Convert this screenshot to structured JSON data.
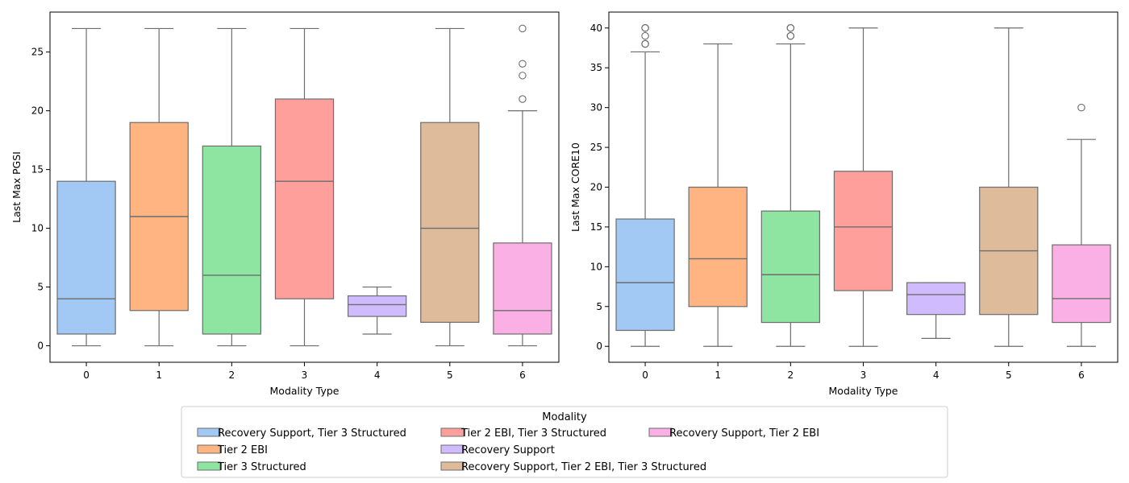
{
  "chart_data": [
    {
      "type": "box",
      "xlabel": "Modality Type",
      "ylabel": "Last Max PGSI",
      "ylim": [
        -1.4,
        28.4
      ],
      "yticks": [
        0,
        5,
        10,
        15,
        20,
        25
      ],
      "categories": [
        "0",
        "1",
        "2",
        "3",
        "4",
        "5",
        "6"
      ],
      "boxes": [
        {
          "category": "0",
          "series": "Recovery Support, Tier 3 Structured",
          "whislo": 0,
          "q1": 1,
          "median": 4,
          "q3": 14,
          "whishi": 27,
          "fliers": []
        },
        {
          "category": "1",
          "series": "Tier 2 EBI",
          "whislo": 0,
          "q1": 3,
          "median": 11,
          "q3": 19,
          "whishi": 27,
          "fliers": []
        },
        {
          "category": "2",
          "series": "Tier 3 Structured",
          "whislo": 0,
          "q1": 1,
          "median": 6,
          "q3": 17,
          "whishi": 27,
          "fliers": []
        },
        {
          "category": "3",
          "series": "Tier 2 EBI, Tier 3 Structured",
          "whislo": 0,
          "q1": 4,
          "median": 14,
          "q3": 21,
          "whishi": 27,
          "fliers": []
        },
        {
          "category": "4",
          "series": "Recovery Support",
          "whislo": 1,
          "q1": 2.5,
          "median": 3.5,
          "q3": 4.25,
          "whishi": 5,
          "fliers": []
        },
        {
          "category": "5",
          "series": "Recovery Support, Tier 2 EBI, Tier 3 Structured",
          "whislo": 0,
          "q1": 2,
          "median": 10,
          "q3": 19,
          "whishi": 27,
          "fliers": []
        },
        {
          "category": "6",
          "series": "Recovery Support, Tier 2 EBI",
          "whislo": 0,
          "q1": 1,
          "median": 3,
          "q3": 8.75,
          "whishi": 20,
          "fliers": [
            21,
            23,
            24,
            27
          ]
        }
      ]
    },
    {
      "type": "box",
      "xlabel": "Modality Type",
      "ylabel": "Last Max CORE10",
      "ylim": [
        -2,
        42
      ],
      "yticks": [
        0,
        5,
        10,
        15,
        20,
        25,
        30,
        35,
        40
      ],
      "categories": [
        "0",
        "1",
        "2",
        "3",
        "4",
        "5",
        "6"
      ],
      "boxes": [
        {
          "category": "0",
          "series": "Recovery Support, Tier 3 Structured",
          "whislo": 0,
          "q1": 2,
          "median": 8,
          "q3": 16,
          "whishi": 37,
          "fliers": [
            38,
            38,
            39,
            40,
            40
          ]
        },
        {
          "category": "1",
          "series": "Tier 2 EBI",
          "whislo": 0,
          "q1": 5,
          "median": 11,
          "q3": 20,
          "whishi": 38,
          "fliers": []
        },
        {
          "category": "2",
          "series": "Tier 3 Structured",
          "whislo": 0,
          "q1": 3,
          "median": 9,
          "q3": 17,
          "whishi": 38,
          "fliers": [
            39,
            39,
            40,
            40
          ]
        },
        {
          "category": "3",
          "series": "Tier 2 EBI, Tier 3 Structured",
          "whislo": 0,
          "q1": 7,
          "median": 15,
          "q3": 22,
          "whishi": 40,
          "fliers": []
        },
        {
          "category": "4",
          "series": "Recovery Support",
          "whislo": 1,
          "q1": 4,
          "median": 6.5,
          "q3": 8,
          "whishi": 8,
          "fliers": []
        },
        {
          "category": "5",
          "series": "Recovery Support, Tier 2 EBI, Tier 3 Structured",
          "whislo": 0,
          "q1": 4,
          "median": 12,
          "q3": 20,
          "whishi": 40,
          "fliers": []
        },
        {
          "category": "6",
          "series": "Recovery Support, Tier 2 EBI",
          "whislo": 0,
          "q1": 3,
          "median": 6,
          "q3": 12.75,
          "whishi": 26,
          "fliers": [
            30
          ]
        }
      ]
    }
  ],
  "legend": {
    "title": "Modality",
    "placement": "bottom-center",
    "entries": [
      {
        "label": "Recovery Support, Tier 3 Structured",
        "color": "#a1c9f4"
      },
      {
        "label": "Tier 2 EBI",
        "color": "#ffb482"
      },
      {
        "label": "Tier 3 Structured",
        "color": "#8de5a1"
      },
      {
        "label": "Tier 2 EBI, Tier 3 Structured",
        "color": "#ff9f9b"
      },
      {
        "label": "Recovery Support",
        "color": "#d0bbff"
      },
      {
        "label": "Recovery Support, Tier 2 EBI, Tier 3 Structured",
        "color": "#debb9b"
      },
      {
        "label": "Recovery Support, Tier 2 EBI",
        "color": "#fab0e4"
      }
    ]
  },
  "style": {
    "line_color": "#6d6d6d",
    "axis_color": "#000000"
  }
}
